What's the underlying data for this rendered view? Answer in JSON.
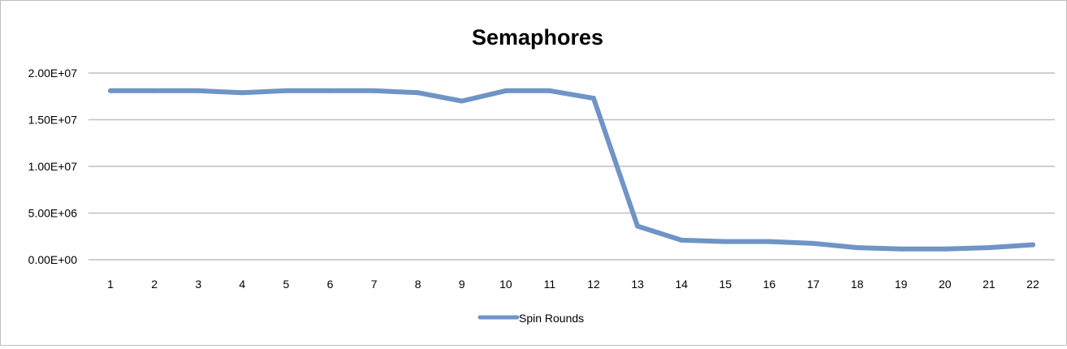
{
  "chart_data": {
    "type": "line",
    "title": "Semaphores",
    "xlabel": "",
    "ylabel": "",
    "categories": [
      "1",
      "2",
      "3",
      "4",
      "5",
      "6",
      "7",
      "8",
      "9",
      "10",
      "11",
      "12",
      "13",
      "14",
      "15",
      "16",
      "17",
      "18",
      "19",
      "20",
      "21",
      "22"
    ],
    "y_ticks": [
      "2.00E+07",
      "1.50E+07",
      "1.00E+07",
      "5.00E+06",
      "0.00E+00"
    ],
    "ylim": [
      0,
      20000000
    ],
    "grid": true,
    "legend_position": "bottom",
    "series": [
      {
        "name": "Spin Rounds",
        "color": "#6f94c6",
        "values": [
          18100000,
          18100000,
          18100000,
          17900000,
          18100000,
          18100000,
          18100000,
          17900000,
          17000000,
          18100000,
          18100000,
          17300000,
          3600000,
          2100000,
          1950000,
          1950000,
          1750000,
          1300000,
          1150000,
          1150000,
          1300000,
          1600000
        ]
      }
    ]
  }
}
